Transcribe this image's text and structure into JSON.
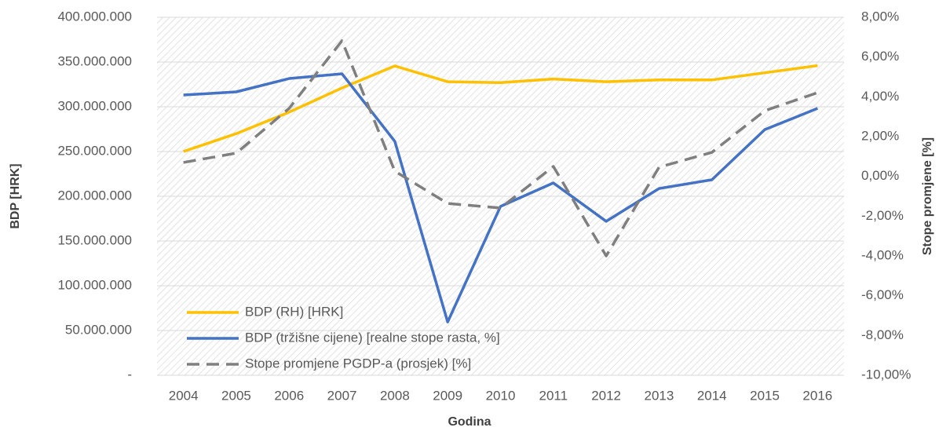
{
  "chart_data": {
    "type": "line",
    "categories": [
      "2004",
      "2005",
      "2006",
      "2007",
      "2008",
      "2009",
      "2010",
      "2011",
      "2012",
      "2013",
      "2014",
      "2015",
      "2016"
    ],
    "series": [
      {
        "name": "BDP (RH) [HRK]",
        "color": "#ffc000",
        "axis": "y",
        "linestyle": "solid",
        "values": [
          250000000,
          270000000,
          294000000,
          321000000,
          345600000,
          328000000,
          327000000,
          331000000,
          328000000,
          330000000,
          330000000,
          338000000,
          346000000
        ]
      },
      {
        "name": "BDP (tržišne cijene) [realne stope rasta, %]",
        "color": "#4472c4",
        "axis": "y2",
        "linestyle": "solid",
        "values": [
          4.09,
          4.25,
          4.92,
          5.16,
          1.76,
          -7.32,
          -1.51,
          -0.33,
          -2.26,
          -0.61,
          -0.17,
          2.35,
          3.42
        ]
      },
      {
        "name": "Stope promjene PGDP-a (prosjek) [%]",
        "color": "#7f7f7f",
        "axis": "y2",
        "linestyle": "dashed",
        "values": [
          0.7,
          1.17,
          3.42,
          6.82,
          0.26,
          -1.36,
          -1.59,
          0.5,
          -4.0,
          0.46,
          1.21,
          3.3,
          4.21
        ]
      }
    ],
    "xlabel": "Godina",
    "ylabel": "BDP [HRK]",
    "y2label": "Stope promjene [%]",
    "ylim": [
      0,
      400000000
    ],
    "yticks": [
      {
        "value": 0,
        "label": "-"
      },
      {
        "value": 50000000,
        "label": "50.000.000"
      },
      {
        "value": 100000000,
        "label": "100.000.000"
      },
      {
        "value": 150000000,
        "label": "150.000.000"
      },
      {
        "value": 200000000,
        "label": "200.000.000"
      },
      {
        "value": 250000000,
        "label": "250.000.000"
      },
      {
        "value": 300000000,
        "label": "300.000.000"
      },
      {
        "value": 350000000,
        "label": "350.000.000"
      },
      {
        "value": 400000000,
        "label": "400.000.000"
      }
    ],
    "y2lim": [
      -10,
      8
    ],
    "y2ticks": [
      {
        "value": -10,
        "label": "-10,00%"
      },
      {
        "value": -8,
        "label": "-8,00%"
      },
      {
        "value": -6,
        "label": "-6,00%"
      },
      {
        "value": -4,
        "label": "-4,00%"
      },
      {
        "value": -2,
        "label": "-2,00%"
      },
      {
        "value": 0,
        "label": "0,00%"
      },
      {
        "value": 2,
        "label": "2,00%"
      },
      {
        "value": 4,
        "label": "4,00%"
      },
      {
        "value": 6,
        "label": "6,00%"
      },
      {
        "value": 8,
        "label": "8,00%"
      }
    ],
    "grid": true,
    "legend": "lower left"
  }
}
